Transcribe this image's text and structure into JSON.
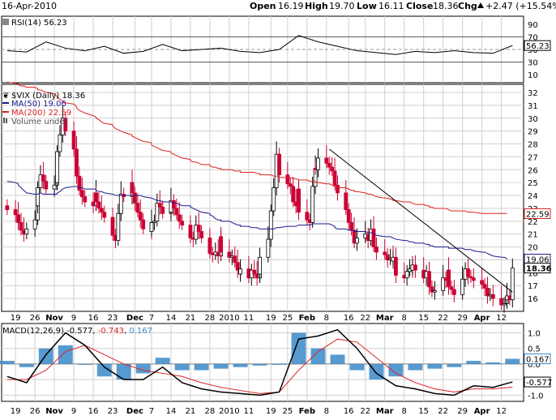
{
  "header": {
    "date": "16-Apr-2010",
    "open_label": "Open",
    "open": "16.19",
    "high_label": "High",
    "high": "19.70",
    "low_label": "Low",
    "low": "16.11",
    "close_label": "Close",
    "close": "18.36",
    "chg_label": "Chg",
    "chg": "+2.47 (+15.54%)",
    "chg_arrow": "up-triangle-icon"
  },
  "colors": {
    "up": "#000000",
    "down": "#cc0033",
    "ma50": "#1a1a8c",
    "ma200": "#dd2222",
    "volume": "#3a88c8",
    "macd": "#000000",
    "signal": "#dd2222",
    "histogram": "#3a88c8",
    "trendline": "#000000",
    "grid": "#d0d0d0"
  },
  "chart_data": [
    {
      "type": "line",
      "panel": "rsi",
      "legend": "RSI(14) 56.23",
      "ylim": [
        0,
        100
      ],
      "y_ticks": [
        90,
        70,
        50,
        30,
        10
      ],
      "reference_lines": [
        70,
        30
      ],
      "x": [
        "2009-10-16",
        "2009-10-23",
        "2009-10-30",
        "2009-11-06",
        "2009-11-13",
        "2009-11-20",
        "2009-11-27",
        "2009-12-04",
        "2009-12-11",
        "2009-12-18",
        "2009-12-25",
        "2010-01-01",
        "2010-01-08",
        "2010-01-15",
        "2010-01-22",
        "2010-01-29",
        "2010-02-05",
        "2010-02-12",
        "2010-02-19",
        "2010-02-26",
        "2010-03-05",
        "2010-03-12",
        "2010-03-19",
        "2010-03-26",
        "2010-04-02",
        "2010-04-09",
        "2010-04-16"
      ],
      "values": [
        48,
        46,
        62,
        52,
        48,
        55,
        44,
        47,
        58,
        48,
        50,
        52,
        47,
        45,
        50,
        72,
        62,
        55,
        48,
        45,
        42,
        47,
        45,
        48,
        45,
        44,
        56.23
      ],
      "last_value_label": "56.23"
    },
    {
      "type": "candlestick",
      "panel": "price",
      "title": "$VIX (Daily) 18.36",
      "legend": [
        {
          "name": "MA(50) 19.06",
          "color": "#1a1a8c"
        },
        {
          "name": "MA(200) 22.59",
          "color": "#dd2222"
        },
        {
          "name": "Volume undef",
          "color": "#555555"
        }
      ],
      "ylim": [
        15,
        32
      ],
      "y_ticks": [
        32,
        31,
        30,
        29,
        28,
        27,
        26,
        25,
        24,
        23,
        22,
        21,
        20,
        19,
        18,
        17,
        16
      ],
      "x_tick_labels": [
        "19",
        "26",
        "Nov",
        "9",
        "16",
        "23",
        "Dec",
        "7",
        "14",
        "21",
        "28",
        "2010",
        "11",
        "19",
        "25",
        "Feb",
        "8",
        "16",
        "22",
        "Mar",
        "8",
        "15",
        "22",
        "29",
        "Apr",
        "12"
      ],
      "x_tick_dates": [
        "2009-10-19",
        "2009-10-26",
        "2009-11-02",
        "2009-11-09",
        "2009-11-16",
        "2009-11-23",
        "2009-12-01",
        "2009-12-07",
        "2009-12-14",
        "2009-12-21",
        "2009-12-28",
        "2010-01-04",
        "2010-01-11",
        "2010-01-19",
        "2010-01-25",
        "2010-02-01",
        "2010-02-08",
        "2010-02-16",
        "2010-02-22",
        "2010-03-01",
        "2010-03-08",
        "2010-03-15",
        "2010-03-22",
        "2010-03-29",
        "2010-04-05",
        "2010-04-12"
      ],
      "close": [
        22.9,
        22.5,
        22.1,
        21.9,
        21.3,
        21.0,
        21.4,
        22.1,
        23.2,
        24.6,
        25.6,
        25.1,
        24.5,
        24.8,
        25.0,
        27.4,
        28.7,
        30.0,
        29.0,
        27.6,
        26.7,
        25.5,
        24.4,
        23.9,
        23.5,
        23.2,
        24.2,
        23.5,
        23.0,
        22.7,
        22.3,
        21.3,
        20.9,
        20.5,
        22.6,
        24.1,
        23.9,
        25.0,
        24.2,
        23.4,
        22.7,
        22.1,
        21.4,
        21.2,
        21.9,
        22.0,
        23.4,
        23.1,
        22.6,
        22.7,
        23.6,
        23.0,
        22.5,
        22.0,
        21.7,
        21.0,
        20.7,
        20.6,
        21.7,
        21.2,
        20.7,
        19.9,
        19.5,
        19.4,
        19.6,
        19.3,
        20.8,
        19.6,
        19.2,
        19.3,
        18.8,
        18.2,
        17.9,
        18.3,
        17.6,
        18.2,
        17.9,
        17.6,
        17.9,
        19.2,
        20.6,
        22.8,
        24.6,
        27.2,
        26.6,
        25.6,
        24.9,
        24.7,
        23.5,
        23.2,
        24.5,
        22.7,
        22.1,
        21.9,
        24.7,
        26.1,
        26.0,
        26.9,
        26.5,
        26.2,
        25.9,
        25.4,
        24.8,
        24.2,
        22.9,
        21.9,
        21.3,
        20.6,
        20.3,
        20.7,
        21.0,
        20.5,
        21.4,
        20.6,
        20.0,
        19.6,
        19.4,
        19.0,
        19.1,
        18.9,
        19.2,
        17.8,
        17.6,
        18.1,
        18.3,
        18.2,
        18.6,
        18.2,
        17.6,
        18.1,
        17.3,
        16.9,
        16.5,
        16.6,
        17.6,
        17.4,
        18.2,
        16.9,
        16.7,
        16.3,
        17.5,
        18.3,
        18.1,
        17.7,
        17.6,
        17.4,
        17.1,
        16.8,
        16.7,
        16.2,
        16.3,
        16.0,
        15.5,
        15.6,
        15.9,
        16.2,
        15.9,
        18.36
      ],
      "ma50": [
        25.1,
        25.0,
        24.9,
        24.8,
        24.6,
        24.4,
        24.2,
        24.1,
        24.1,
        24.1,
        24.2,
        24.1,
        24.1,
        24.1,
        24.1,
        24.2,
        24.3,
        24.5,
        24.6,
        24.7,
        24.7,
        24.7,
        24.6,
        24.6,
        24.5,
        24.5,
        24.5,
        24.4,
        24.3,
        24.3,
        24.2,
        24.1,
        24.1,
        24.0,
        24.0,
        24.0,
        24.0,
        24.0,
        24.0,
        24.0,
        24.0,
        24.0,
        23.9,
        23.8,
        23.8,
        23.7,
        23.6,
        23.6,
        23.5,
        23.5,
        23.5,
        23.4,
        23.4,
        23.3,
        23.2,
        23.2,
        23.1,
        23.0,
        22.9,
        22.8,
        22.7,
        22.6,
        22.5,
        22.4,
        22.2,
        22.1,
        22.1,
        22.0,
        22.0,
        21.9,
        21.8,
        21.7,
        21.7,
        21.6,
        21.6,
        21.5,
        21.5,
        21.5,
        21.4,
        21.4,
        21.4,
        21.4,
        21.4,
        21.5,
        21.5,
        21.5,
        21.6,
        21.6,
        21.6,
        21.6,
        21.7,
        21.7,
        21.7,
        21.7,
        21.8,
        21.8,
        21.8,
        21.8,
        21.8,
        21.8,
        21.7,
        21.6,
        21.5,
        21.4,
        21.4,
        21.3,
        21.3,
        21.3,
        21.2,
        21.2,
        21.2,
        21.1,
        21.1,
        21.0,
        21.0,
        20.9,
        20.8,
        20.8,
        20.8,
        20.7,
        20.7,
        20.6,
        20.5,
        20.5,
        20.4,
        20.4,
        20.4,
        20.3,
        20.3,
        20.2,
        20.2,
        20.1,
        20.1,
        20.0,
        20.0,
        20.0,
        20.0,
        19.9,
        19.9,
        19.9,
        19.9,
        19.8,
        19.8,
        19.8,
        19.8,
        19.7,
        19.6,
        19.6,
        19.5,
        19.5,
        19.4,
        19.3,
        19.2,
        19.2,
        19.1,
        19.06
      ],
      "ma200": [
        32.8,
        32.7,
        32.7,
        32.6,
        32.5,
        32.5,
        32.4,
        32.4,
        32.3,
        32.2,
        32.2,
        32.1,
        32.0,
        31.9,
        31.7,
        31.6,
        31.5,
        31.3,
        31.2,
        31.1,
        30.9,
        30.8,
        30.6,
        30.5,
        30.4,
        30.2,
        30.1,
        30.0,
        29.9,
        29.7,
        29.6,
        29.5,
        29.4,
        29.2,
        29.1,
        29.0,
        28.9,
        28.7,
        28.6,
        28.5,
        28.4,
        28.3,
        28.2,
        28.1,
        27.9,
        27.8,
        27.7,
        27.6,
        27.5,
        27.4,
        27.3,
        27.2,
        27.1,
        27.0,
        26.9,
        26.8,
        26.7,
        26.6,
        26.6,
        26.5,
        26.4,
        26.4,
        26.3,
        26.2,
        26.2,
        26.1,
        26.1,
        26.0,
        26.0,
        26.0,
        25.9,
        25.9,
        25.9,
        25.8,
        25.8,
        25.8,
        25.8,
        25.7,
        25.7,
        25.6,
        25.6,
        25.6,
        25.5,
        25.5,
        25.5,
        25.4,
        25.4,
        25.4,
        25.3,
        25.3,
        25.2,
        25.2,
        25.2,
        25.1,
        25.1,
        25.1,
        25.0,
        25.0,
        24.9,
        24.9,
        24.8,
        24.7,
        24.7,
        24.6,
        24.6,
        24.5,
        24.4,
        24.4,
        24.3,
        24.3,
        24.2,
        24.1,
        24.1,
        24.0,
        24.0,
        23.9,
        23.8,
        23.8,
        23.7,
        23.7,
        23.6,
        23.6,
        23.5,
        23.5,
        23.5,
        23.4,
        23.4,
        23.3,
        23.3,
        23.2,
        23.2,
        23.1,
        23.1,
        23.0,
        23.0,
        23.0,
        22.9,
        22.9,
        22.8,
        22.8,
        22.8,
        22.8,
        22.7,
        22.7,
        22.7,
        22.7,
        22.6,
        22.6,
        22.6,
        22.6,
        22.6,
        22.6,
        22.6,
        22.6,
        22.6,
        22.59
      ],
      "trendline": {
        "from": [
          "2010-02-09",
          27.6
        ],
        "to": [
          "2010-04-16",
          16.5
        ]
      },
      "last_value_labels": {
        "ma200": "22.59",
        "ma50": "19.06",
        "close": "18.36"
      }
    },
    {
      "type": "line",
      "panel": "macd",
      "legend": [
        {
          "name": "MACD(12,26,9) -0.577",
          "color": "#000000"
        },
        {
          "name": "-0.743",
          "color": "#dd2222"
        },
        {
          "name": "0.167",
          "color": "#3a88c8"
        }
      ],
      "ylim": [
        -1.2,
        1.3
      ],
      "y_ticks": [
        1.0,
        0.5,
        0.0,
        -0.5,
        -1.0
      ],
      "x": [
        "2009-10-16",
        "2009-10-23",
        "2009-10-30",
        "2009-11-06",
        "2009-11-13",
        "2009-11-20",
        "2009-11-27",
        "2009-12-04",
        "2009-12-11",
        "2009-12-18",
        "2009-12-25",
        "2010-01-01",
        "2010-01-08",
        "2010-01-15",
        "2010-01-22",
        "2010-01-29",
        "2010-02-05",
        "2010-02-12",
        "2010-02-19",
        "2010-02-26",
        "2010-03-05",
        "2010-03-12",
        "2010-03-19",
        "2010-03-26",
        "2010-04-02",
        "2010-04-09",
        "2010-04-16"
      ],
      "macd": [
        -0.4,
        -0.6,
        0.3,
        1.0,
        0.6,
        -0.1,
        -0.5,
        -0.5,
        -0.1,
        -0.6,
        -0.8,
        -0.9,
        -0.95,
        -1.0,
        -0.9,
        0.8,
        0.9,
        1.1,
        0.5,
        -0.3,
        -0.7,
        -0.8,
        -0.95,
        -1.0,
        -0.7,
        -0.75,
        -0.577
      ],
      "signal": [
        -0.5,
        -0.5,
        -0.2,
        0.4,
        0.6,
        0.3,
        0.0,
        -0.2,
        -0.3,
        -0.4,
        -0.6,
        -0.75,
        -0.85,
        -0.95,
        -0.9,
        -0.2,
        0.4,
        0.8,
        0.7,
        0.2,
        -0.3,
        -0.6,
        -0.8,
        -0.9,
        -0.8,
        -0.8,
        -0.743
      ],
      "histogram": [
        0.1,
        -0.1,
        0.5,
        0.6,
        0.0,
        -0.4,
        -0.5,
        -0.3,
        0.2,
        -0.2,
        -0.2,
        -0.15,
        -0.1,
        -0.05,
        0.0,
        1.0,
        0.5,
        0.3,
        -0.2,
        -0.5,
        -0.4,
        -0.2,
        -0.15,
        -0.1,
        0.1,
        0.05,
        0.167
      ],
      "last_value_labels": {
        "histogram": "0.167",
        "macd": "-0.577"
      }
    }
  ]
}
